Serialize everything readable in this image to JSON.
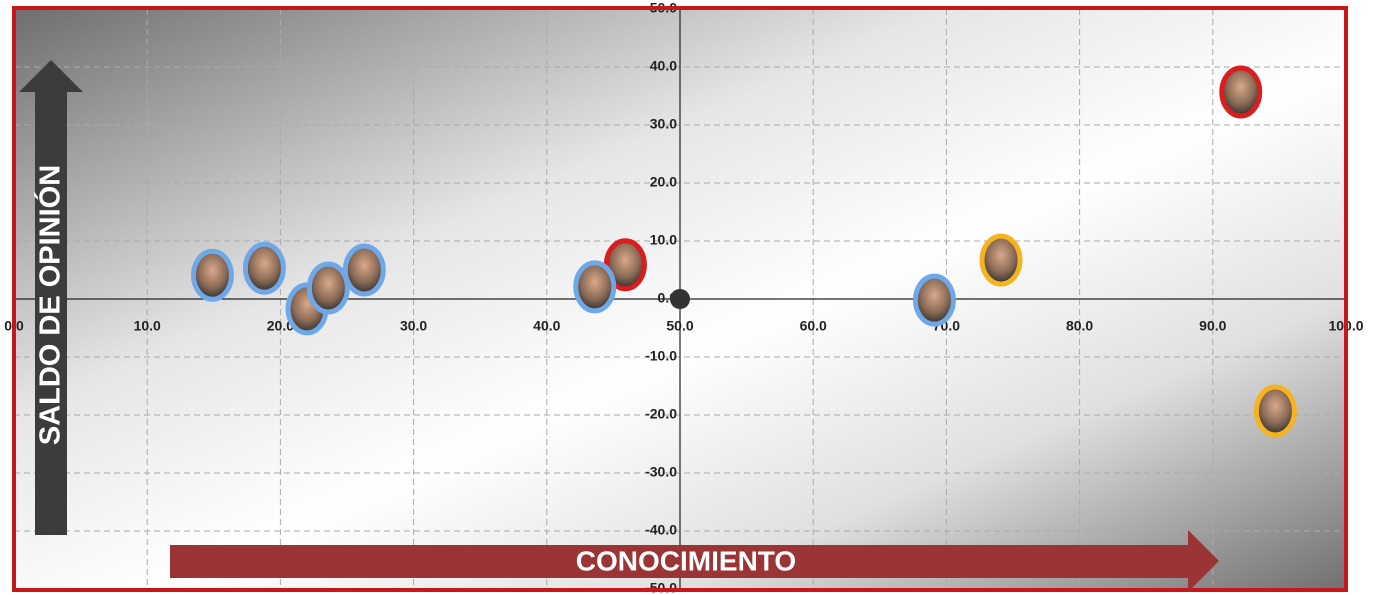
{
  "chart_data": {
    "type": "scatter",
    "x_label": "CONOCIMIENTO",
    "y_label": "SALDO DE OPINIÓN",
    "x": [
      14.9,
      18.8,
      22.0,
      23.6,
      26.3,
      45.9,
      43.6,
      69.1,
      74.1,
      92.1,
      94.7
    ],
    "values": [
      4.1,
      5.3,
      -1.7,
      1.9,
      5.0,
      5.9,
      2.1,
      -0.2,
      6.7,
      35.7,
      -19.3
    ],
    "colors": [
      "#6fa8e8",
      "#6fa8e8",
      "#6fa8e8",
      "#6fa8e8",
      "#6fa8e8",
      "#d81e1e",
      "#6fa8e8",
      "#6fa8e8",
      "#f5b320",
      "#d81e1e",
      "#f5b320"
    ],
    "xlim": [
      0,
      100
    ],
    "ylim": [
      -50,
      50
    ],
    "y_axis_at": 50,
    "xticks": [
      {
        "value": 0,
        "label": "0.0"
      },
      {
        "value": 10,
        "label": "10.0"
      },
      {
        "value": 20,
        "label": "20.0"
      },
      {
        "value": 30,
        "label": "30.0"
      },
      {
        "value": 40,
        "label": "40.0"
      },
      {
        "value": 50,
        "label": "50.0"
      },
      {
        "value": 60,
        "label": "60.0"
      },
      {
        "value": 70,
        "label": "70.0"
      },
      {
        "value": 80,
        "label": "80.0"
      },
      {
        "value": 90,
        "label": "90.0"
      },
      {
        "value": 100,
        "label": "100.0"
      }
    ],
    "yticks": [
      {
        "value": -50,
        "label": "-50.0"
      },
      {
        "value": -40,
        "label": "-40.0"
      },
      {
        "value": -30,
        "label": "-30.0"
      },
      {
        "value": -20,
        "label": "-20.0"
      },
      {
        "value": -10,
        "label": "-10.0"
      },
      {
        "value": 0,
        "label": "0.0"
      },
      {
        "value": 10,
        "label": "10.0"
      },
      {
        "value": 20,
        "label": "20.0"
      },
      {
        "value": 30,
        "label": "30.0"
      },
      {
        "value": 40,
        "label": "40.0"
      },
      {
        "value": 50,
        "label": "50.0"
      }
    ],
    "grid": true
  }
}
